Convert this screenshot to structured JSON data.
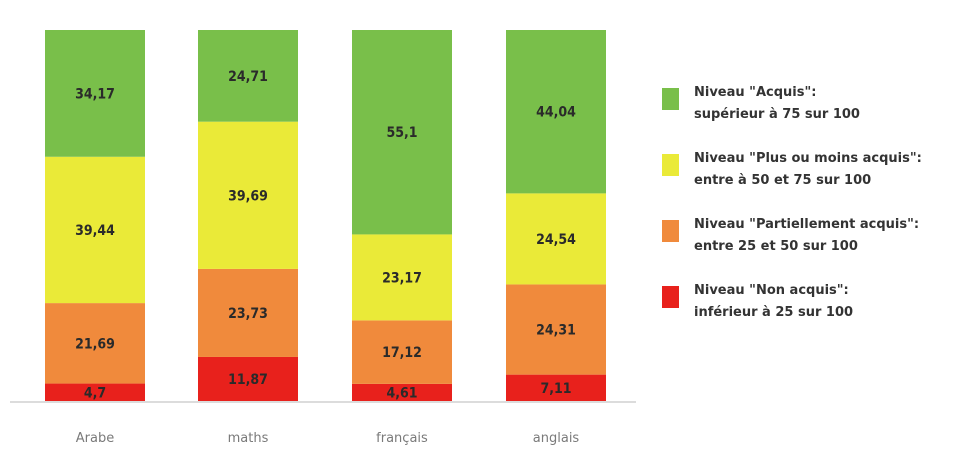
{
  "chart_data": {
    "type": "stacked-bar",
    "categories": [
      "Arabe",
      "maths",
      "français",
      "anglais"
    ],
    "series": [
      {
        "name": "Niveau \"Non acquis\": inférieur à 25 sur 100",
        "color": "#e8211c",
        "values": [
          4.7,
          11.87,
          4.61,
          7.11
        ],
        "labels": [
          "4,7",
          "11,87",
          "4,61",
          "7,11"
        ]
      },
      {
        "name": "Niveau \"Partiellement acquis\": entre 25 et 50 sur 100",
        "color": "#f08a3c",
        "values": [
          21.69,
          23.73,
          17.12,
          24.31
        ],
        "labels": [
          "21,69",
          "23,73",
          "17,12",
          "24,31"
        ]
      },
      {
        "name": "Niveau \"Plus ou moins acquis\": entre à 50 et 75 sur 100",
        "color": "#eaea38",
        "values": [
          39.44,
          39.69,
          23.17,
          24.54
        ],
        "labels": [
          "39,44",
          "39,69",
          "23,17",
          "24,54"
        ]
      },
      {
        "name": "Niveau \"Acquis\": supérieur à 75 sur 100",
        "color": "#79bf4a",
        "values": [
          34.17,
          24.71,
          55.1,
          44.04
        ],
        "labels": [
          "34,17",
          "24,71",
          "55,1",
          "44,04"
        ]
      }
    ],
    "ylim": [
      0,
      100
    ],
    "grid": false,
    "legend_position": "right"
  },
  "legend": [
    {
      "line1": "Niveau \"Acquis\":",
      "line2": "supérieur à 75 sur 100",
      "color": "#79bf4a"
    },
    {
      "line1": "Niveau \"Plus ou moins acquis\":",
      "line2": "entre à 50 et 75 sur 100",
      "color": "#eaea38"
    },
    {
      "line1": "Niveau \"Partiellement acquis\":",
      "line2": "entre 25 et 50 sur 100",
      "color": "#f08a3c"
    },
    {
      "line1": "Niveau \"Non acquis\":",
      "line2": "inférieur à 25 sur 100",
      "color": "#e8211c"
    }
  ]
}
